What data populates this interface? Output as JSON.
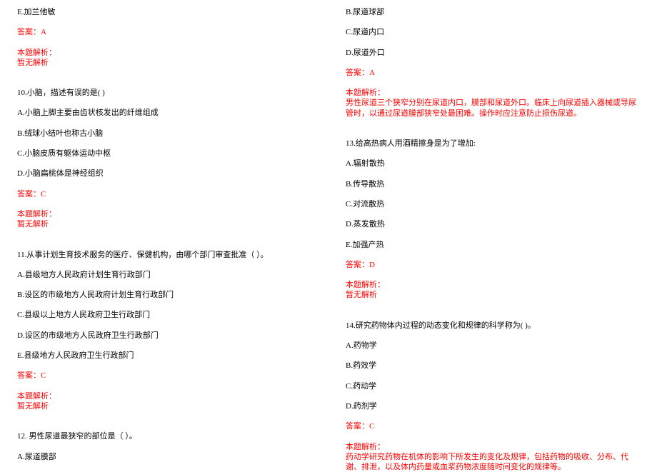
{
  "colors": {
    "text_default": "#000000",
    "text_red": "#ff0000",
    "background": "#ffffff"
  },
  "typography": {
    "font_family": "SimSun",
    "font_size_pt": 8
  },
  "left": {
    "q9_optE": "E.加兰他敏",
    "q9_answer": "答案：A",
    "q9_explain_label": "本题解析：",
    "q9_explain_text": "暂无解析",
    "q10_stem": "10.小脑，描述有误的是( )",
    "q10_A": "A.小脑上脚主要由齿状核发出的纤维组成",
    "q10_B": "B.绒球小结叶也称古小脑",
    "q10_C": "C.小脑皮质有躯体运动中枢",
    "q10_D": "D.小脑扁桃体是神经组织",
    "q10_answer": "答案：C",
    "q10_explain_label": "本题解析：",
    "q10_explain_text": "暂无解析",
    "q11_stem": "11.从事计划生育技术服务的医疗、保健机构，由哪个部门审查批准（ ）。",
    "q11_A": "A.县级地方人民政府计划生育行政部门",
    "q11_B": "B.设区的市级地方人民政府计划生育行政部门",
    "q11_C": "C.县级以上地方人民政府卫生行政部门",
    "q11_D": "D.设区的市级地方人民政府卫生行政部门",
    "q11_E": "E.县级地方人民政府卫生行政部门",
    "q11_answer": "答案：C",
    "q11_explain_label": "本题解析：",
    "q11_explain_text": "暂无解析",
    "q12_stem": "12. 男性尿道最狭窄的部位是（ ）。",
    "q12_A": "A.尿道膜部"
  },
  "right": {
    "q12_B": "B.尿道球部",
    "q12_C": "C.尿道内口",
    "q12_D": "D.尿道外口",
    "q12_answer": "答案：A",
    "q12_explain_label": "本题解析：",
    "q12_explain_text": "男性尿道三个狭窄分别在尿道内口，膜部和尿道外口。临床上向尿道插入器械或导尿管时，以通过尿道膜部狭窄处最困难。操作时应注意防止损伤尿道。",
    "q13_stem": "13.给高热病人用酒精擦身是为了增加:",
    "q13_A": "A.辐射散热",
    "q13_B": "B.传导散热",
    "q13_C": "C.对流散热",
    "q13_D": "D.蒸发散热",
    "q13_E": "E.加强产热",
    "q13_answer": "答案：D",
    "q13_explain_label": "本题解析：",
    "q13_explain_text": "暂无解析",
    "q14_stem": "14.研究药物体内过程的动态变化和规律的科学称为( )。",
    "q14_A": "A.药物学",
    "q14_B": "B.药效学",
    "q14_C": "C.药动学",
    "q14_D": "D.药剂学",
    "q14_answer": "答案：C",
    "q14_explain_label": "本题解析：",
    "q14_explain_text": "药动学研究药物在机体的影响下所发生的变化及规律，包括药物的吸收、分布、代谢、排泄，以及体内药量或血浆药物浓度随时间变化的规律等。"
  }
}
